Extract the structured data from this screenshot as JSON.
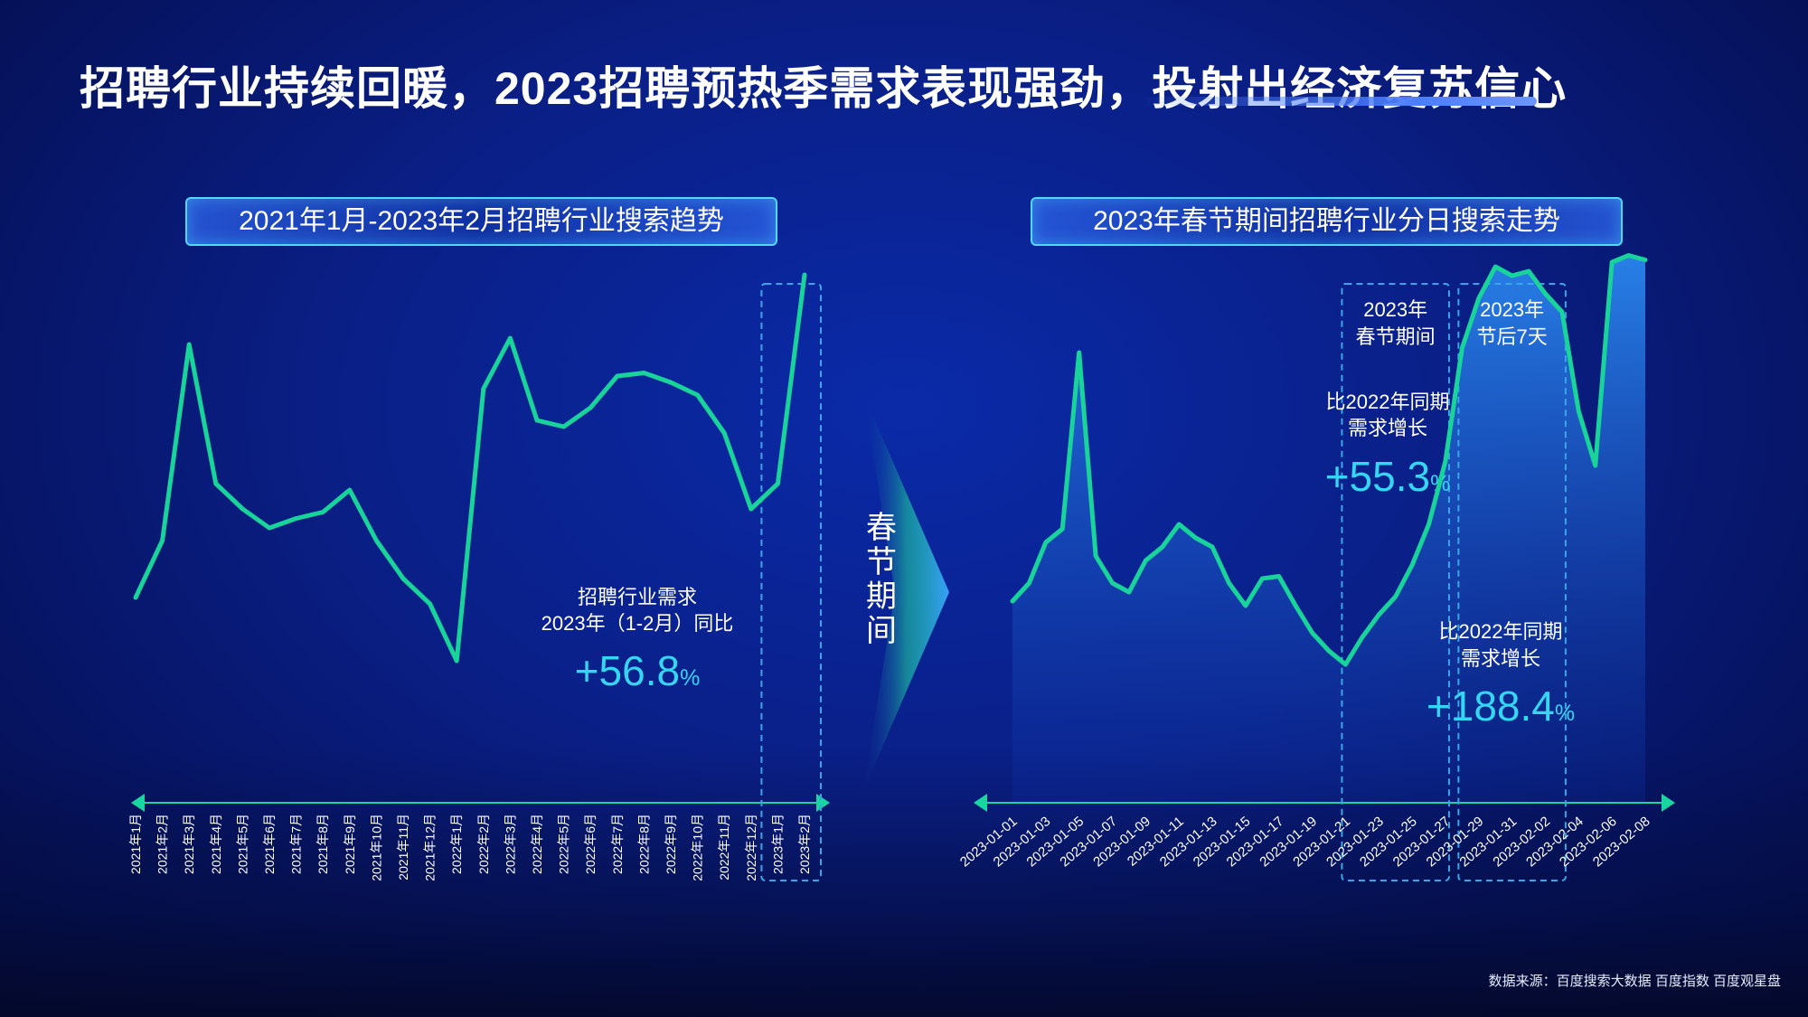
{
  "title": "招聘行业持续回暖，2023招聘预热季需求表现强劲，投射出经济复苏信心",
  "source": "数据来源：百度搜索大数据 百度指数 百度观星盘",
  "divider_label": "春节期间",
  "chart_data": [
    {
      "type": "line",
      "title": "2021年1月-2023年2月招聘行业搜索趋势",
      "categories": [
        "2021年1月",
        "2021年2月",
        "2021年3月",
        "2021年4月",
        "2021年5月",
        "2021年6月",
        "2021年7月",
        "2021年8月",
        "2021年9月",
        "2021年10月",
        "2021年11月",
        "2021年12月",
        "2022年1月",
        "2022年2月",
        "2022年3月",
        "2022年4月",
        "2022年5月",
        "2022年6月",
        "2022年7月",
        "2022年8月",
        "2022年9月",
        "2022年10月",
        "2022年11月",
        "2022年12月",
        "2023年1月",
        "2023年2月"
      ],
      "values": [
        52,
        61,
        92,
        70,
        66,
        63,
        64.5,
        65.5,
        69,
        61,
        55,
        51,
        42,
        85,
        93,
        80,
        79,
        82,
        87,
        87.5,
        86,
        84,
        78,
        66,
        70,
        103
      ],
      "ylim": [
        20,
        120
      ],
      "highlight": {
        "from": "2023年1月",
        "to": "2023年2月"
      },
      "annotation": {
        "label": "招聘行业需求",
        "label2": "2023年（1-2月）同比",
        "value": "+56.8",
        "unit": "%"
      },
      "colors": {
        "line": "#18d39a"
      }
    },
    {
      "type": "area",
      "title": "2023年春节期间招聘行业分日搜索走势",
      "x": [
        "2023-01-01",
        "2023-01-02",
        "2023-01-03",
        "2023-01-04",
        "2023-01-05",
        "2023-01-06",
        "2023-01-07",
        "2023-01-08",
        "2023-01-09",
        "2023-01-10",
        "2023-01-11",
        "2023-01-12",
        "2023-01-13",
        "2023-01-14",
        "2023-01-15",
        "2023-01-16",
        "2023-01-17",
        "2023-01-18",
        "2023-01-19",
        "2023-01-20",
        "2023-01-21",
        "2023-01-22",
        "2023-01-23",
        "2023-01-24",
        "2023-01-25",
        "2023-01-26",
        "2023-01-27",
        "2023-01-28",
        "2023-01-29",
        "2023-01-30",
        "2023-01-31",
        "2023-02-01",
        "2023-02-02",
        "2023-02-03",
        "2023-02-04",
        "2023-02-05",
        "2023-02-06",
        "2023-02-07",
        "2023-02-08"
      ],
      "tick_labels": [
        "2023-01-01",
        "2023-01-03",
        "2023-01-05",
        "2023-01-07",
        "2023-01-09",
        "2023-01-11",
        "2023-01-13",
        "2023-01-15",
        "2023-01-17",
        "2023-01-19",
        "2023-01-21",
        "2023-01-23",
        "2023-01-25",
        "2023-01-27",
        "2023-01-29",
        "2023-01-31",
        "2023-02-02",
        "2023-02-04",
        "2023-02-06",
        "2023-02-08"
      ],
      "values": [
        29,
        33,
        42,
        45,
        84,
        39,
        33,
        31,
        38,
        41,
        46,
        43,
        41,
        33,
        28,
        34,
        34.5,
        28,
        22,
        18,
        15,
        21,
        26,
        30,
        37,
        46,
        60,
        85,
        96,
        103,
        101,
        102,
        97,
        93,
        71,
        59,
        104,
        105.5,
        104.5
      ],
      "ylim": [
        -15,
        125
      ],
      "highlights": [
        {
          "from": "2023-01-21",
          "to": "2023-01-27",
          "label": "2023年",
          "label2": "春节期间",
          "note": "比2022年同期",
          "note2": "需求增长",
          "value": "+55.3",
          "unit": "%"
        },
        {
          "from": "2023-01-28",
          "to": "2023-02-03",
          "label": "2023年",
          "label2": "节后7天",
          "note": "比2022年同期",
          "note2": "需求增长",
          "value": "+188.4",
          "unit": "%"
        }
      ],
      "colors": {
        "line": "#18d39a",
        "area_top": "#1f6fd9",
        "area_bottom": "#0b2a9a"
      }
    }
  ],
  "colors": {
    "accent": "#35d6f2",
    "dashed": "#3aa6e8",
    "axis": "#19d6a0"
  }
}
